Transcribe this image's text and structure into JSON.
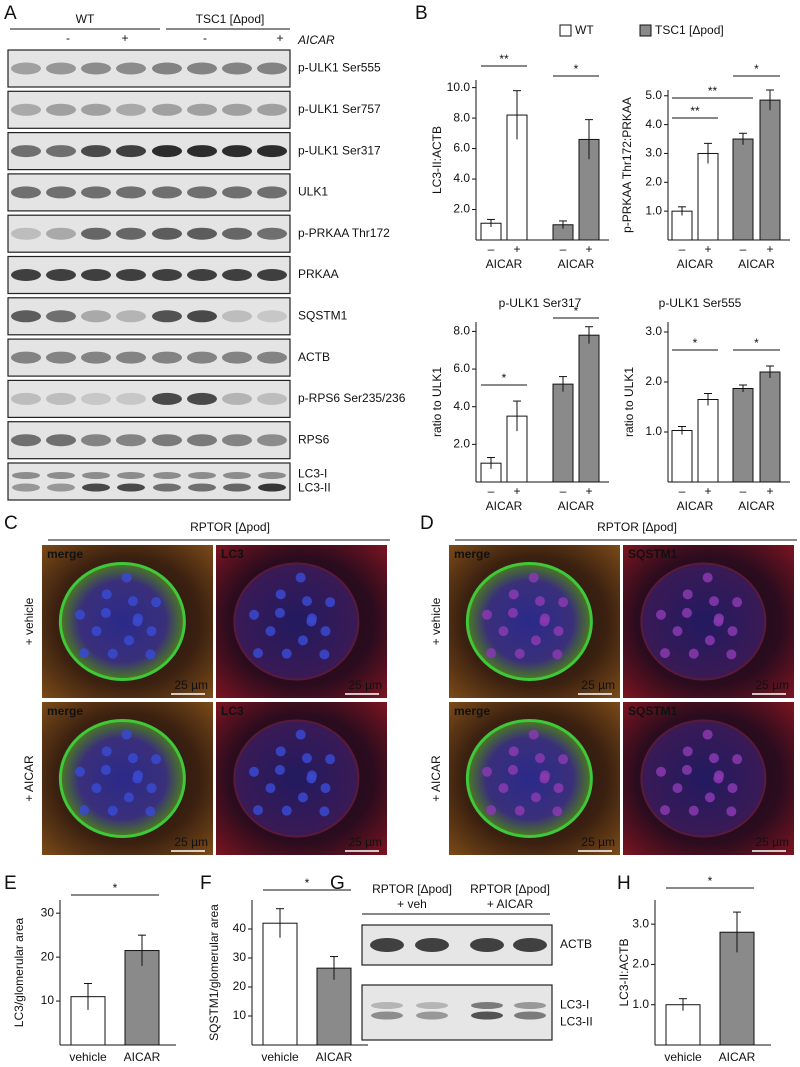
{
  "panel_labels": [
    "A",
    "B",
    "C",
    "D",
    "E",
    "F",
    "G",
    "H"
  ],
  "blot_a": {
    "groups": [
      "WT",
      "TSC1 [Δpod]"
    ],
    "treatment_labels": [
      "-",
      "+",
      "-",
      "+"
    ],
    "treatment": "AICAR",
    "rows": [
      [
        "p-ULK1 Ser555"
      ],
      [
        "p-ULK1 Ser757"
      ],
      [
        "p-ULK1 Ser317"
      ],
      [
        "ULK1"
      ],
      [
        "p-PRKAA Thr172"
      ],
      [
        "PRKAA"
      ],
      [
        "SQSTM1"
      ],
      [
        "ACTB"
      ],
      [
        "p-RPS6 Ser235/236"
      ],
      [
        "RPS6"
      ],
      [
        "LC3-I",
        "LC3-II"
      ]
    ]
  },
  "legend": [
    {
      "name": "WT",
      "color": "#ffffff"
    },
    {
      "name": "TSC1 [Δpod]",
      "color": "#8a8a8a"
    }
  ],
  "chart_data": [
    {
      "type": "bar",
      "ylabel": "LC3-II:ACTB",
      "ylim": [
        0,
        10.5
      ],
      "yticks": [
        {
          "value": 2,
          "label": "2.0"
        },
        {
          "value": 4,
          "label": "4.0"
        },
        {
          "value": 6,
          "label": "6.0"
        },
        {
          "value": 8,
          "label": "8.0"
        },
        {
          "value": 10,
          "label": "10.0"
        }
      ],
      "series": [
        {
          "label": "AICAR",
          "categories": [
            "–",
            "+"
          ],
          "color": "#ffffff",
          "values": [
            1.1,
            8.2
          ],
          "errors": [
            0.25,
            1.6
          ]
        },
        {
          "label": "AICAR",
          "categories": [
            "–",
            "+"
          ],
          "color": "#8a8a8a",
          "values": [
            1.0,
            6.6
          ],
          "errors": [
            0.25,
            1.3
          ]
        }
      ],
      "significance": [
        "**",
        "*"
      ]
    },
    {
      "type": "bar",
      "ylabel": "p-PRKAA Thr172:PRKAA",
      "ylim": [
        0,
        5.2
      ],
      "yticks": [
        {
          "value": 1,
          "label": "1.0"
        },
        {
          "value": 2,
          "label": "2.0"
        },
        {
          "value": 3,
          "label": "3.0"
        },
        {
          "value": 4,
          "label": "4.0"
        },
        {
          "value": 5,
          "label": "5.0"
        }
      ],
      "series": [
        {
          "label": "AICAR",
          "categories": [
            "–",
            "+"
          ],
          "color": "#ffffff",
          "values": [
            1.0,
            3.0
          ],
          "errors": [
            0.15,
            0.35
          ]
        },
        {
          "label": "AICAR",
          "categories": [
            "–",
            "+"
          ],
          "color": "#8a8a8a",
          "values": [
            3.5,
            4.85
          ],
          "errors": [
            0.2,
            0.35
          ]
        }
      ],
      "significance": [
        "**",
        "**",
        "*"
      ]
    },
    {
      "type": "bar",
      "title": "p-ULK1 Ser317",
      "ylabel": "ratio to ULK1",
      "ylim": [
        0,
        8.5
      ],
      "yticks": [
        {
          "value": 2,
          "label": "2.0"
        },
        {
          "value": 4,
          "label": "4.0"
        },
        {
          "value": 6,
          "label": "6.0"
        },
        {
          "value": 8,
          "label": "8.0"
        }
      ],
      "series": [
        {
          "label": "AICAR",
          "categories": [
            "–",
            "+"
          ],
          "color": "#ffffff",
          "values": [
            1.0,
            3.5
          ],
          "errors": [
            0.3,
            0.8
          ]
        },
        {
          "label": "AICAR",
          "categories": [
            "–",
            "+"
          ],
          "color": "#8a8a8a",
          "values": [
            5.2,
            7.8
          ],
          "errors": [
            0.4,
            0.45
          ]
        }
      ],
      "significance": [
        "*",
        "*"
      ]
    },
    {
      "type": "bar",
      "title": "p-ULK1 Ser555",
      "ylabel": "ratio to ULK1",
      "ylim": [
        0,
        3.2
      ],
      "yticks": [
        {
          "value": 1,
          "label": "1.0"
        },
        {
          "value": 2,
          "label": "2.0"
        },
        {
          "value": 3,
          "label": "3.0"
        }
      ],
      "series": [
        {
          "label": "AICAR",
          "categories": [
            "–",
            "+"
          ],
          "color": "#ffffff",
          "values": [
            1.03,
            1.65
          ],
          "errors": [
            0.08,
            0.12
          ]
        },
        {
          "label": "AICAR",
          "categories": [
            "–",
            "+"
          ],
          "color": "#8a8a8a",
          "values": [
            1.87,
            2.2
          ],
          "errors": [
            0.07,
            0.12
          ]
        }
      ],
      "significance": [
        "*",
        "*"
      ]
    },
    {
      "type": "bar",
      "ylabel": "LC3/glomerular area",
      "ylim": [
        0,
        33
      ],
      "yticks": [
        10,
        20,
        30
      ],
      "categories": [
        "vehicle",
        "AICAR"
      ],
      "colors": [
        "#ffffff",
        "#8a8a8a"
      ],
      "values": [
        11,
        21.5
      ],
      "errors": [
        3,
        3.5
      ],
      "significance": [
        "*"
      ]
    },
    {
      "type": "bar",
      "ylabel": "SQSTM1/glomerular area",
      "ylim": [
        0,
        50
      ],
      "yticks": [
        10,
        20,
        30,
        40
      ],
      "categories": [
        "vehicle",
        "AICAR"
      ],
      "colors": [
        "#ffffff",
        "#8a8a8a"
      ],
      "values": [
        42,
        26.5
      ],
      "errors": [
        5,
        4
      ],
      "significance": [
        "*"
      ]
    },
    {
      "type": "bar",
      "ylabel": "LC3-II:ACTB",
      "ylim": [
        0,
        3.6
      ],
      "yticks": [
        {
          "value": 1,
          "label": "1.0"
        },
        {
          "value": 2,
          "label": "2.0"
        },
        {
          "value": 3,
          "label": "3.0"
        }
      ],
      "categories": [
        "vehicle",
        "AICAR"
      ],
      "colors": [
        "#ffffff",
        "#8a8a8a"
      ],
      "values": [
        1.0,
        2.8
      ],
      "errors": [
        0.15,
        0.5
      ],
      "significance": [
        "*"
      ]
    }
  ],
  "panel_c": {
    "header": "RPTOR [Δpod]",
    "rows": [
      "+ vehicle",
      "+ AICAR"
    ],
    "channels": [
      "merge",
      "LC3"
    ],
    "scale_bar": "25 µm"
  },
  "panel_d": {
    "header": "RPTOR [Δpod]",
    "rows": [
      "+ vehicle",
      "+ AICAR"
    ],
    "channels": [
      "merge",
      "SQSTM1"
    ],
    "scale_bar": "25 µm"
  },
  "panel_g": {
    "groups": [
      {
        "genotype": "RPTOR [Δpod]",
        "treatment": "+ veh"
      },
      {
        "genotype": "RPTOR [Δpod]",
        "treatment": "+ AICAR"
      }
    ],
    "rows": [
      [
        "ACTB"
      ],
      [
        "LC3-I",
        "LC3-II"
      ]
    ]
  }
}
